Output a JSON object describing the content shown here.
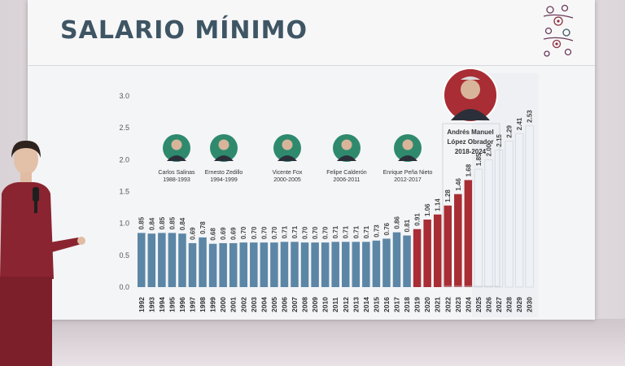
{
  "screen": {
    "title": "SALARIO MÍNIMO"
  },
  "colors": {
    "bar_blue": "#5c86a6",
    "bar_red": "#a92d34",
    "bar_projection": "#eef1f5",
    "title": "#3e5564"
  },
  "presidents": [
    {
      "name": "Carlos Salinas",
      "years": "1988-1993"
    },
    {
      "name": "Ernesto Zedillo",
      "years": "1994-1999"
    },
    {
      "name": "Vicente Fox",
      "years": "2000-2005"
    },
    {
      "name": "Felipe Calderón",
      "years": "2006-2011"
    },
    {
      "name": "Enrique Peña Nieto",
      "years": "2012-2017"
    }
  ],
  "featured_president": {
    "name_line1": "Andrés Manuel",
    "name_line2": "López Obrador",
    "years": "2018-2024"
  },
  "chart_data": {
    "type": "bar",
    "title": "SALARIO MÍNIMO",
    "xlabel": "",
    "ylabel": "",
    "ylim": [
      0,
      3.0
    ],
    "yticks": [
      "0.0",
      "0.5",
      "1.0",
      "1.5",
      "2.0",
      "2.5",
      "3.0"
    ],
    "grid": false,
    "categories": [
      "1992",
      "1993",
      "1994",
      "1995",
      "1996",
      "1997",
      "1998",
      "1999",
      "2000",
      "2001",
      "2002",
      "2003",
      "2004",
      "2005",
      "2006",
      "2007",
      "2008",
      "2009",
      "2010",
      "2011",
      "2012",
      "2013",
      "2014",
      "2015",
      "2016",
      "2017",
      "2018",
      "2019",
      "2020",
      "2021",
      "2022",
      "2023",
      "2024",
      "2025",
      "2026",
      "2027",
      "2028",
      "2029",
      "2030"
    ],
    "values": [
      0.85,
      0.84,
      0.85,
      0.85,
      0.84,
      0.69,
      0.78,
      0.68,
      0.69,
      0.69,
      0.7,
      0.7,
      0.7,
      0.7,
      0.71,
      0.71,
      0.7,
      0.7,
      0.7,
      0.71,
      0.71,
      0.71,
      0.71,
      0.73,
      0.76,
      0.86,
      0.81,
      0.91,
      1.06,
      1.14,
      1.28,
      1.46,
      1.68,
      1.85,
      2.0,
      2.15,
      2.29,
      2.41,
      2.53
    ],
    "labels": [
      "0.85",
      "0.84",
      "0.85",
      "0.85",
      "0.84",
      "0.69",
      "0.78",
      "0.68",
      "0.69",
      "0.69",
      "0.70",
      "0.70",
      "0.70",
      "0.70",
      "0.71",
      "0.71",
      "0.70",
      "0.70",
      "0.70",
      "0.71",
      "0.71",
      "0.71",
      "0.71",
      "0.73",
      "0.76",
      "0.86",
      "0.81",
      "0.91",
      "1.06",
      "1.14",
      "1.28",
      "1.46",
      "1.68",
      "1.85",
      "2.00",
      "2.15",
      "2.29",
      "2.41",
      "2.53"
    ],
    "groups": [
      "blue",
      "blue",
      "blue",
      "blue",
      "blue",
      "blue",
      "blue",
      "blue",
      "blue",
      "blue",
      "blue",
      "blue",
      "blue",
      "blue",
      "blue",
      "blue",
      "blue",
      "blue",
      "blue",
      "blue",
      "blue",
      "blue",
      "blue",
      "blue",
      "blue",
      "blue",
      "blue",
      "red",
      "red",
      "red",
      "red",
      "red",
      "red",
      "projection",
      "projection",
      "projection",
      "projection",
      "projection",
      "projection"
    ]
  }
}
